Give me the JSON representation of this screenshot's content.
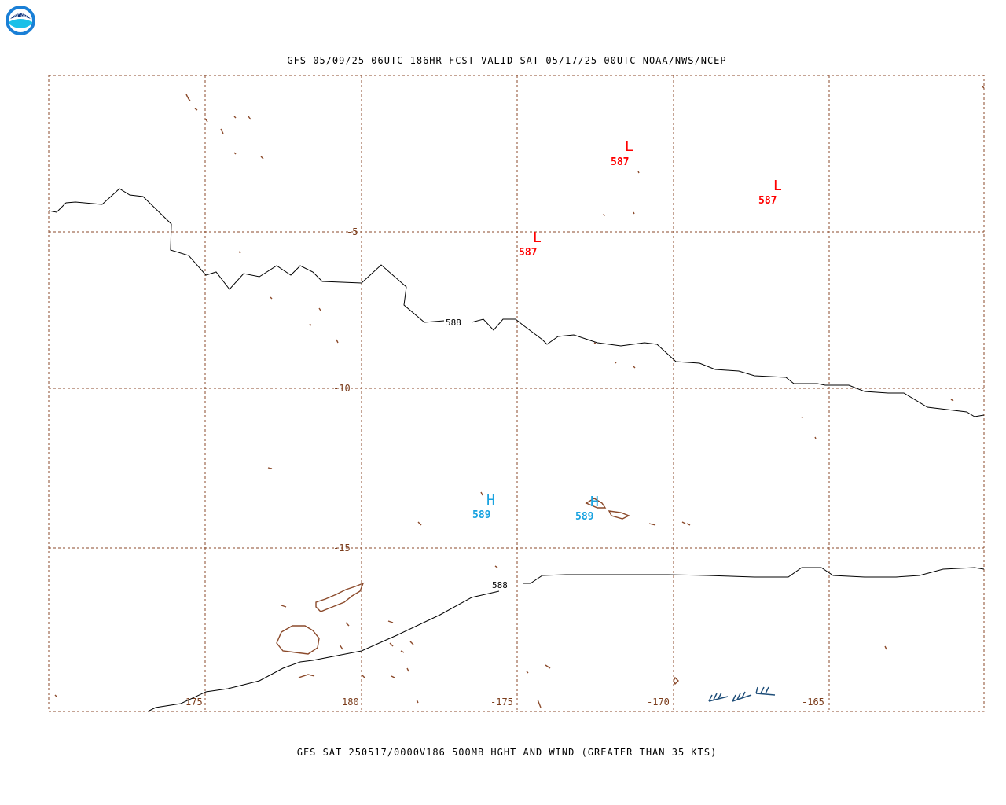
{
  "header": {
    "title": "GFS 05/09/25 06UTC 186HR FCST VALID SAT 05/17/25 00UTC NOAA/NWS/NCEP",
    "logo_text": "NOAA"
  },
  "footer": {
    "caption": "GFS SAT 250517/0000V186 500MB HGHT AND WIND (GREATER THAN 35 KTS)"
  },
  "map": {
    "lat_labels": [
      "-5",
      "-10",
      "-15"
    ],
    "lon_labels": [
      "175",
      "180",
      "-175",
      "-170",
      "-165"
    ],
    "contour_labels": [
      "588",
      "588"
    ],
    "centers": [
      {
        "type": "L",
        "value": "587",
        "color": "#ff0000"
      },
      {
        "type": "L",
        "value": "587",
        "color": "#ff0000"
      },
      {
        "type": "L",
        "value": "587",
        "color": "#ff0000"
      },
      {
        "type": "H",
        "value": "589",
        "color": "#1aa3e0"
      },
      {
        "type": "H",
        "value": "589",
        "color": "#1aa3e0"
      }
    ],
    "colors": {
      "grid": "#8b4a2b",
      "coast": "#8b4a2b",
      "contour": "#000000",
      "wind_barb": "#1f4e79",
      "low": "#ff0000",
      "high": "#1aa3e0"
    }
  }
}
